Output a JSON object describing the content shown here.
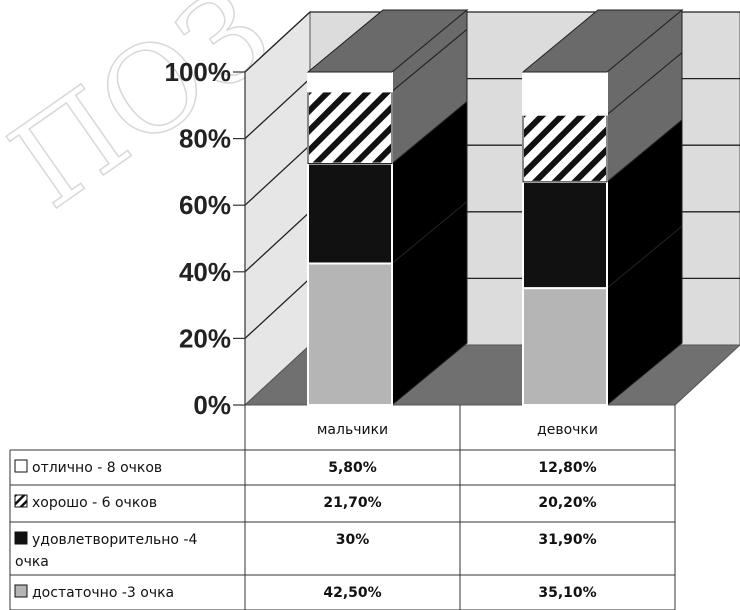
{
  "watermark": "ПОЗ",
  "chart_data": {
    "type": "bar",
    "stacked": true,
    "percent_stacked": true,
    "three_d": true,
    "categories": [
      "мальчики",
      "девочки"
    ],
    "y_ticks": [
      "0%",
      "20%",
      "40%",
      "60%",
      "80%",
      "100%"
    ],
    "ylim": [
      0,
      100
    ],
    "grid": true,
    "series": [
      {
        "name": "достаточно -3 очка",
        "values": [
          42.5,
          35.1
        ],
        "labels": [
          "42,50%",
          "35,10%"
        ],
        "color": "#b5b5b5",
        "pattern": "solid"
      },
      {
        "name": "удовлетворительно -4 очка",
        "values": [
          30,
          31.9
        ],
        "labels": [
          "30%",
          "31,90%"
        ],
        "color": "#111111",
        "pattern": "solid"
      },
      {
        "name": "хорошо - 6 очков",
        "values": [
          21.7,
          20.2
        ],
        "labels": [
          "21,70%",
          "20,20%"
        ],
        "color": "#ffffff",
        "pattern": "diagonal-hatch"
      },
      {
        "name": "отлично - 8 очков",
        "values": [
          5.8,
          12.8
        ],
        "labels": [
          "5,80%",
          "12,80%"
        ],
        "color": "#ffffff",
        "pattern": "solid"
      }
    ],
    "legend_placement": "data-table-left"
  }
}
